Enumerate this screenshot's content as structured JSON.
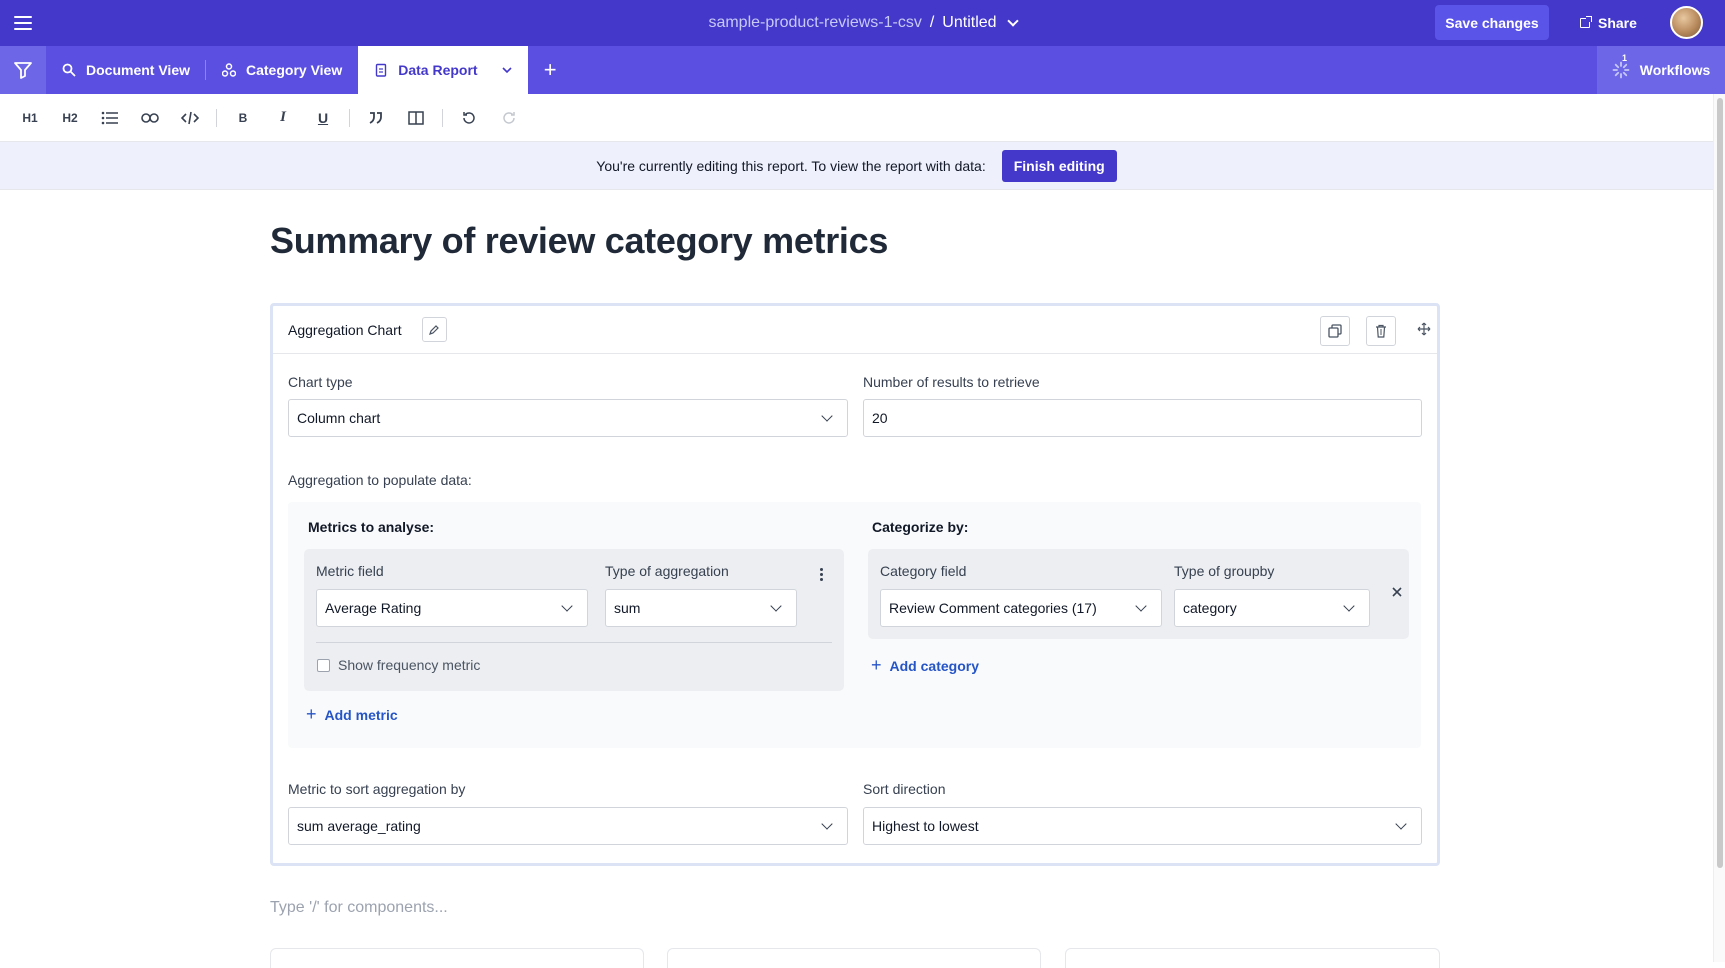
{
  "header": {
    "dataset": "sample-product-reviews-1-csv",
    "separator": "/",
    "document": "Untitled",
    "save_label": "Save changes",
    "share_label": "Share"
  },
  "tabs": {
    "items": [
      {
        "label": "Document View",
        "icon": "search-icon"
      },
      {
        "label": "Category View",
        "icon": "category-icon"
      },
      {
        "label": "Data Report",
        "icon": "report-icon"
      }
    ],
    "add": "+",
    "workflows_label": "Workflows",
    "workflows_badge": "1"
  },
  "toolbar": {
    "h1": "H1",
    "h2": "H2",
    "bold": "B",
    "italic": "I",
    "underline": "U"
  },
  "banner": {
    "text": "You're currently editing this report. To view the report with data:",
    "button": "Finish editing"
  },
  "page": {
    "title": "Summary of review category metrics",
    "placeholder": "Type '/' for components..."
  },
  "card": {
    "title": "Aggregation Chart",
    "chart_type_label": "Chart type",
    "chart_type_value": "Column chart",
    "results_label": "Number of results to retrieve",
    "results_value": "20",
    "aggregation_label": "Aggregation to populate data:",
    "metrics": {
      "heading": "Metrics to analyse:",
      "field_label": "Metric field",
      "field_value": "Average Rating",
      "agg_label": "Type of aggregation",
      "agg_value": "sum",
      "frequency_label": "Show frequency metric",
      "add_label": "Add metric"
    },
    "categorize": {
      "heading": "Categorize by:",
      "field_label": "Category field",
      "field_value": "Review Comment categories (17)",
      "groupby_label": "Type of groupby",
      "groupby_value": "category",
      "add_label": "Add category"
    },
    "sort_metric_label": "Metric to sort aggregation by",
    "sort_metric_value": "sum average_rating",
    "sort_dir_label": "Sort direction",
    "sort_dir_value": "Highest to lowest"
  }
}
